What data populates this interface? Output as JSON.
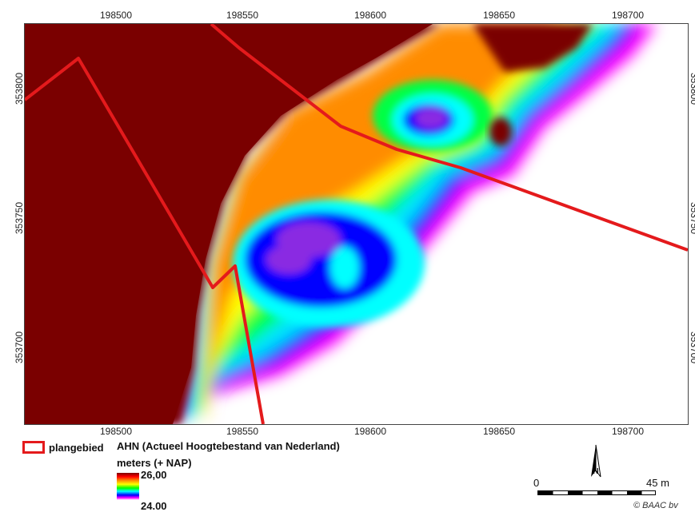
{
  "map": {
    "x_ticks_top": [
      "198500",
      "198550",
      "198600",
      "198650",
      "198700"
    ],
    "x_ticks_bottom": [
      "198500",
      "198550",
      "198600",
      "198650",
      "198700"
    ],
    "y_ticks_left": [
      "353800",
      "353750",
      "353700"
    ],
    "y_ticks_right": [
      "353800",
      "353750",
      "353700"
    ],
    "colors": {
      "boundary": "#e41a1c",
      "high_ground": "#7a0000",
      "low_ground": "#ffffff"
    }
  },
  "legend": {
    "plan_label": "plangebied",
    "ahn_title": "AHN (Actueel Hoogtebestand van Nederland)",
    "ahn_unit": "meters (+ NAP)",
    "ramp_max": "26,00",
    "ramp_min": "24.00"
  },
  "scale": {
    "zero": "0",
    "max": "45 m"
  },
  "north": {
    "label": "N"
  },
  "credit": "© BAAC bv"
}
